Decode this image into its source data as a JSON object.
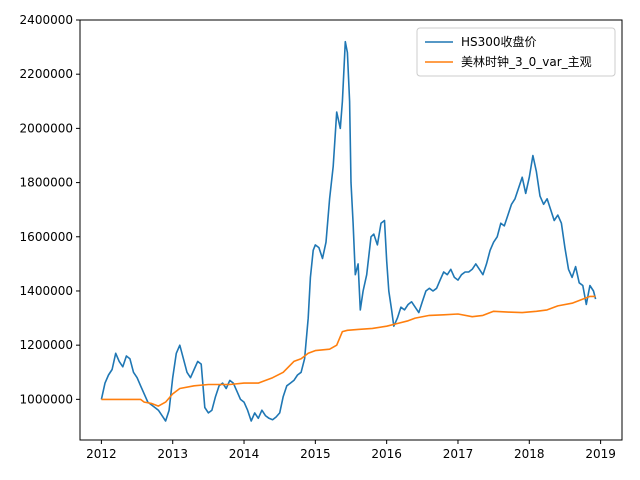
{
  "chart_data": {
    "type": "line",
    "title": "",
    "xlabel": "",
    "ylabel": "",
    "xlim": [
      2011.7,
      2019.3
    ],
    "ylim": [
      850000,
      2400000
    ],
    "grid": false,
    "legend_position": "top-right",
    "x_ticks": [
      "2012",
      "2013",
      "2014",
      "2015",
      "2016",
      "2017",
      "2018",
      "2019"
    ],
    "y_ticks": [
      "1000000",
      "1200000",
      "1400000",
      "1600000",
      "1800000",
      "2000000",
      "2200000",
      "2400000"
    ],
    "series": [
      {
        "name": "HS300收盘价",
        "color": "#1f77b4",
        "points": [
          [
            2012.0,
            1000000
          ],
          [
            2012.05,
            1060000
          ],
          [
            2012.1,
            1090000
          ],
          [
            2012.15,
            1110000
          ],
          [
            2012.2,
            1170000
          ],
          [
            2012.25,
            1140000
          ],
          [
            2012.3,
            1120000
          ],
          [
            2012.35,
            1160000
          ],
          [
            2012.4,
            1150000
          ],
          [
            2012.45,
            1100000
          ],
          [
            2012.5,
            1080000
          ],
          [
            2012.55,
            1050000
          ],
          [
            2012.6,
            1020000
          ],
          [
            2012.65,
            990000
          ],
          [
            2012.7,
            980000
          ],
          [
            2012.75,
            970000
          ],
          [
            2012.8,
            960000
          ],
          [
            2012.85,
            940000
          ],
          [
            2012.9,
            920000
          ],
          [
            2012.95,
            960000
          ],
          [
            2013.0,
            1080000
          ],
          [
            2013.05,
            1170000
          ],
          [
            2013.1,
            1200000
          ],
          [
            2013.15,
            1150000
          ],
          [
            2013.2,
            1100000
          ],
          [
            2013.25,
            1080000
          ],
          [
            2013.3,
            1110000
          ],
          [
            2013.35,
            1140000
          ],
          [
            2013.4,
            1130000
          ],
          [
            2013.45,
            970000
          ],
          [
            2013.5,
            950000
          ],
          [
            2013.55,
            960000
          ],
          [
            2013.6,
            1010000
          ],
          [
            2013.65,
            1050000
          ],
          [
            2013.7,
            1060000
          ],
          [
            2013.75,
            1040000
          ],
          [
            2013.8,
            1070000
          ],
          [
            2013.85,
            1060000
          ],
          [
            2013.9,
            1030000
          ],
          [
            2013.95,
            1000000
          ],
          [
            2014.0,
            990000
          ],
          [
            2014.05,
            960000
          ],
          [
            2014.1,
            920000
          ],
          [
            2014.15,
            950000
          ],
          [
            2014.2,
            930000
          ],
          [
            2014.25,
            960000
          ],
          [
            2014.3,
            940000
          ],
          [
            2014.35,
            930000
          ],
          [
            2014.4,
            925000
          ],
          [
            2014.45,
            935000
          ],
          [
            2014.5,
            950000
          ],
          [
            2014.55,
            1010000
          ],
          [
            2014.6,
            1050000
          ],
          [
            2014.65,
            1060000
          ],
          [
            2014.7,
            1070000
          ],
          [
            2014.75,
            1090000
          ],
          [
            2014.8,
            1100000
          ],
          [
            2014.85,
            1150000
          ],
          [
            2014.9,
            1300000
          ],
          [
            2014.93,
            1450000
          ],
          [
            2014.97,
            1550000
          ],
          [
            2015.0,
            1570000
          ],
          [
            2015.05,
            1560000
          ],
          [
            2015.1,
            1520000
          ],
          [
            2015.15,
            1580000
          ],
          [
            2015.2,
            1740000
          ],
          [
            2015.25,
            1860000
          ],
          [
            2015.3,
            2060000
          ],
          [
            2015.35,
            2000000
          ],
          [
            2015.38,
            2100000
          ],
          [
            2015.42,
            2320000
          ],
          [
            2015.45,
            2280000
          ],
          [
            2015.48,
            2100000
          ],
          [
            2015.5,
            1800000
          ],
          [
            2015.53,
            1650000
          ],
          [
            2015.56,
            1460000
          ],
          [
            2015.6,
            1500000
          ],
          [
            2015.63,
            1330000
          ],
          [
            2015.67,
            1400000
          ],
          [
            2015.72,
            1460000
          ],
          [
            2015.78,
            1600000
          ],
          [
            2015.82,
            1610000
          ],
          [
            2015.87,
            1570000
          ],
          [
            2015.92,
            1650000
          ],
          [
            2015.97,
            1660000
          ],
          [
            2016.0,
            1510000
          ],
          [
            2016.03,
            1400000
          ],
          [
            2016.07,
            1330000
          ],
          [
            2016.1,
            1270000
          ],
          [
            2016.15,
            1300000
          ],
          [
            2016.2,
            1340000
          ],
          [
            2016.25,
            1330000
          ],
          [
            2016.3,
            1350000
          ],
          [
            2016.35,
            1360000
          ],
          [
            2016.4,
            1340000
          ],
          [
            2016.45,
            1320000
          ],
          [
            2016.5,
            1360000
          ],
          [
            2016.55,
            1400000
          ],
          [
            2016.6,
            1410000
          ],
          [
            2016.65,
            1400000
          ],
          [
            2016.7,
            1410000
          ],
          [
            2016.75,
            1440000
          ],
          [
            2016.8,
            1470000
          ],
          [
            2016.85,
            1460000
          ],
          [
            2016.9,
            1480000
          ],
          [
            2016.95,
            1450000
          ],
          [
            2017.0,
            1440000
          ],
          [
            2017.05,
            1460000
          ],
          [
            2017.1,
            1470000
          ],
          [
            2017.15,
            1470000
          ],
          [
            2017.2,
            1480000
          ],
          [
            2017.25,
            1500000
          ],
          [
            2017.3,
            1480000
          ],
          [
            2017.35,
            1460000
          ],
          [
            2017.4,
            1500000
          ],
          [
            2017.45,
            1550000
          ],
          [
            2017.5,
            1580000
          ],
          [
            2017.55,
            1600000
          ],
          [
            2017.6,
            1650000
          ],
          [
            2017.65,
            1640000
          ],
          [
            2017.7,
            1680000
          ],
          [
            2017.75,
            1720000
          ],
          [
            2017.8,
            1740000
          ],
          [
            2017.85,
            1780000
          ],
          [
            2017.9,
            1820000
          ],
          [
            2017.95,
            1760000
          ],
          [
            2018.0,
            1820000
          ],
          [
            2018.05,
            1900000
          ],
          [
            2018.1,
            1840000
          ],
          [
            2018.15,
            1750000
          ],
          [
            2018.2,
            1720000
          ],
          [
            2018.25,
            1740000
          ],
          [
            2018.3,
            1700000
          ],
          [
            2018.35,
            1660000
          ],
          [
            2018.4,
            1680000
          ],
          [
            2018.45,
            1650000
          ],
          [
            2018.5,
            1560000
          ],
          [
            2018.55,
            1480000
          ],
          [
            2018.6,
            1450000
          ],
          [
            2018.65,
            1490000
          ],
          [
            2018.7,
            1430000
          ],
          [
            2018.75,
            1420000
          ],
          [
            2018.8,
            1350000
          ],
          [
            2018.85,
            1420000
          ],
          [
            2018.9,
            1400000
          ],
          [
            2018.93,
            1370000
          ]
        ]
      },
      {
        "name": "美林时钟_3_0_var_主观",
        "color": "#ff7f0e",
        "points": [
          [
            2012.0,
            1000000
          ],
          [
            2012.3,
            1000000
          ],
          [
            2012.55,
            1000000
          ],
          [
            2012.6,
            990000
          ],
          [
            2012.7,
            985000
          ],
          [
            2012.8,
            975000
          ],
          [
            2012.9,
            990000
          ],
          [
            2013.0,
            1020000
          ],
          [
            2013.1,
            1040000
          ],
          [
            2013.3,
            1050000
          ],
          [
            2013.5,
            1055000
          ],
          [
            2013.8,
            1055000
          ],
          [
            2014.0,
            1060000
          ],
          [
            2014.2,
            1060000
          ],
          [
            2014.4,
            1080000
          ],
          [
            2014.55,
            1100000
          ],
          [
            2014.7,
            1140000
          ],
          [
            2014.8,
            1150000
          ],
          [
            2014.9,
            1170000
          ],
          [
            2015.0,
            1180000
          ],
          [
            2015.2,
            1185000
          ],
          [
            2015.3,
            1200000
          ],
          [
            2015.38,
            1250000
          ],
          [
            2015.45,
            1255000
          ],
          [
            2015.6,
            1258000
          ],
          [
            2015.8,
            1262000
          ],
          [
            2016.0,
            1270000
          ],
          [
            2016.15,
            1280000
          ],
          [
            2016.3,
            1290000
          ],
          [
            2016.4,
            1300000
          ],
          [
            2016.6,
            1310000
          ],
          [
            2016.8,
            1312000
          ],
          [
            2017.0,
            1315000
          ],
          [
            2017.2,
            1305000
          ],
          [
            2017.35,
            1310000
          ],
          [
            2017.5,
            1325000
          ],
          [
            2017.7,
            1322000
          ],
          [
            2017.9,
            1320000
          ],
          [
            2018.1,
            1325000
          ],
          [
            2018.25,
            1330000
          ],
          [
            2018.4,
            1345000
          ],
          [
            2018.6,
            1355000
          ],
          [
            2018.75,
            1370000
          ],
          [
            2018.85,
            1380000
          ],
          [
            2018.93,
            1380000
          ]
        ]
      }
    ]
  }
}
